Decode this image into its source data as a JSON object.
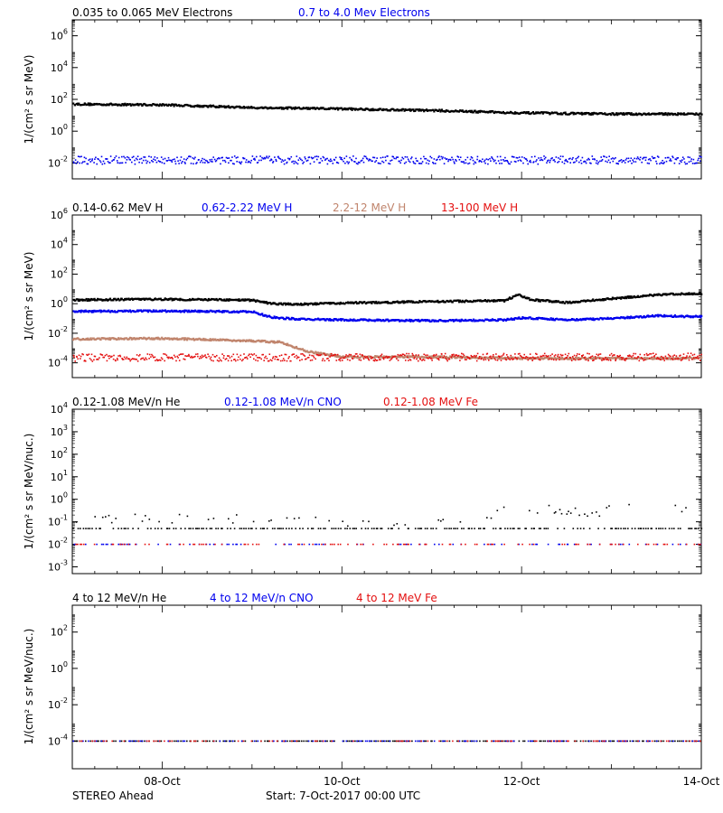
{
  "colors": {
    "black": "#000000",
    "blue": "#0000ee",
    "tan": "#c0846c",
    "red": "#e41010",
    "axis": "#000000"
  },
  "footer": {
    "left": "STEREO Ahead",
    "start": "Start:  7-Oct-2017 00:00 UTC"
  },
  "chart_data": [
    {
      "type": "scatter",
      "y_scale": "log",
      "ylabel": "1/(cm² s sr MeV)",
      "ylim": [
        0.001,
        10000000
      ],
      "y_ticks": [
        {
          "label": "10",
          "exp": "6",
          "value": 1000000
        },
        {
          "label": "10",
          "exp": "4",
          "value": 10000
        },
        {
          "label": "10",
          "exp": "2",
          "value": 100
        },
        {
          "label": "10",
          "exp": "0",
          "value": 1
        },
        {
          "label": "10",
          "exp": "-2",
          "value": 0.01
        }
      ],
      "xlim": [
        "2017-10-07",
        "2017-10-14"
      ],
      "series": [
        {
          "name": "0.035 to 0.065 MeV Electrons",
          "color": "#000000",
          "style": "band",
          "x": [
            7.0,
            8.0,
            9.0,
            10.0,
            11.0,
            12.0,
            13.0,
            14.0
          ],
          "y": [
            50,
            45,
            30,
            25,
            20,
            14,
            12,
            12
          ]
        },
        {
          "name": "0.7 to 4.0 Mev Electrons",
          "color": "#0000ee",
          "style": "noise",
          "x": [
            7.0,
            14.0
          ],
          "y": [
            0.015,
            0.015
          ]
        }
      ]
    },
    {
      "type": "scatter",
      "y_scale": "log",
      "ylabel": "1/(cm² s sr MeV)",
      "ylim": [
        1e-05,
        1000000
      ],
      "y_ticks": [
        {
          "label": "10",
          "exp": "6",
          "value": 1000000
        },
        {
          "label": "10",
          "exp": "4",
          "value": 10000
        },
        {
          "label": "10",
          "exp": "2",
          "value": 100
        },
        {
          "label": "10",
          "exp": "0",
          "value": 1
        },
        {
          "label": "10",
          "exp": "-2",
          "value": 0.01
        },
        {
          "label": "10",
          "exp": "-4",
          "value": 0.0001
        }
      ],
      "xlim": [
        "2017-10-07",
        "2017-10-14"
      ],
      "series": [
        {
          "name": "0.14-0.62 MeV H",
          "color": "#000000",
          "style": "band",
          "x": [
            7.0,
            8.0,
            9.0,
            9.2,
            9.5,
            10.0,
            11.0,
            11.8,
            11.95,
            12.1,
            12.5,
            13.0,
            13.5,
            14.0
          ],
          "y": [
            1.8,
            2.0,
            1.7,
            1.0,
            0.9,
            1.1,
            1.4,
            1.6,
            4.0,
            1.8,
            1.2,
            2.2,
            4.0,
            5.0
          ]
        },
        {
          "name": "0.62-2.22 MeV H",
          "color": "#0000ee",
          "style": "band",
          "x": [
            7.0,
            8.0,
            9.0,
            9.2,
            9.5,
            10.0,
            11.0,
            11.8,
            12.0,
            12.5,
            13.0,
            13.5,
            14.0
          ],
          "y": [
            0.3,
            0.32,
            0.28,
            0.12,
            0.09,
            0.08,
            0.07,
            0.08,
            0.11,
            0.08,
            0.1,
            0.15,
            0.13
          ]
        },
        {
          "name": "2.2-12 MeV H",
          "color": "#c0846c",
          "style": "band",
          "x": [
            7.0,
            8.0,
            9.0,
            9.3,
            9.6,
            10.0,
            11.0,
            12.0,
            13.0,
            14.0
          ],
          "y": [
            0.004,
            0.0045,
            0.003,
            0.0025,
            0.0006,
            0.00025,
            0.00025,
            0.0002,
            0.0002,
            0.0002
          ]
        },
        {
          "name": "13-100 MeV H",
          "color": "#e41010",
          "style": "noise",
          "x": [
            7.0,
            14.0
          ],
          "y": [
            0.00022,
            0.00025
          ]
        }
      ]
    },
    {
      "type": "scatter",
      "y_scale": "log",
      "ylabel": "1/(cm² s sr MeV/nuc.)",
      "ylim": [
        0.0005,
        10000
      ],
      "y_ticks": [
        {
          "label": "10",
          "exp": "4",
          "value": 10000
        },
        {
          "label": "10",
          "exp": "3",
          "value": 1000
        },
        {
          "label": "10",
          "exp": "2",
          "value": 100
        },
        {
          "label": "10",
          "exp": "1",
          "value": 10
        },
        {
          "label": "10",
          "exp": "0",
          "value": 1
        },
        {
          "label": "10",
          "exp": "-1",
          "value": 0.1
        },
        {
          "label": "10",
          "exp": "-2",
          "value": 0.01
        },
        {
          "label": "10",
          "exp": "-3",
          "value": 0.001
        }
      ],
      "xlim": [
        "2017-10-07",
        "2017-10-14"
      ],
      "series": [
        {
          "name": "0.12-1.08 MeV/n He",
          "color": "#000000",
          "style": "sparse",
          "x": [
            7.0,
            9.2,
            10.0,
            11.3,
            11.8,
            12.3,
            12.8,
            13.0,
            13.4,
            13.7,
            14.0
          ],
          "y": [
            0.12,
            0.11,
            0.08,
            0.09,
            0.25,
            0.35,
            0.18,
            0.3,
            0.5,
            0.4,
            0.2
          ]
        },
        {
          "name": "0.12-1.08 MeV/n CNO",
          "color": "#0000ee",
          "style": "floor",
          "x": [
            7.0,
            14.0
          ],
          "y": [
            0.01,
            0.01
          ]
        },
        {
          "name": "0.12-1.08 MeV Fe",
          "color": "#e41010",
          "style": "floor",
          "x": [
            7.0,
            14.0
          ],
          "y": [
            0.01,
            0.01
          ]
        }
      ]
    },
    {
      "type": "scatter",
      "y_scale": "log",
      "ylabel": "1/(cm² s sr MeV/nuc.)",
      "ylim": [
        3e-06,
        3000
      ],
      "y_ticks": [
        {
          "label": "10",
          "exp": "2",
          "value": 100
        },
        {
          "label": "10",
          "exp": "0",
          "value": 1
        },
        {
          "label": "10",
          "exp": "-2",
          "value": 0.01
        },
        {
          "label": "10",
          "exp": "-4",
          "value": 0.0001
        }
      ],
      "xlim": [
        "2017-10-07",
        "2017-10-14"
      ],
      "x_ticks": [
        {
          "label": "08-Oct",
          "value": 8
        },
        {
          "label": "10-Oct",
          "value": 10
        },
        {
          "label": "12-Oct",
          "value": 12
        },
        {
          "label": "14-Oct",
          "value": 14
        }
      ],
      "series": [
        {
          "name": "4 to 12 MeV/n He",
          "color": "#000000",
          "style": "floor",
          "x": [
            7.0,
            14.0
          ],
          "y": [
            0.0001,
            0.0001
          ]
        },
        {
          "name": "4 to 12 MeV/n CNO",
          "color": "#0000ee",
          "style": "floor",
          "x": [
            7.0,
            14.0
          ],
          "y": [
            0.0001,
            0.0001
          ]
        },
        {
          "name": "4 to 12 MeV Fe",
          "color": "#e41010",
          "style": "floor",
          "x": [
            7.0,
            14.0
          ],
          "y": [
            0.0001,
            0.0001
          ]
        }
      ]
    }
  ]
}
